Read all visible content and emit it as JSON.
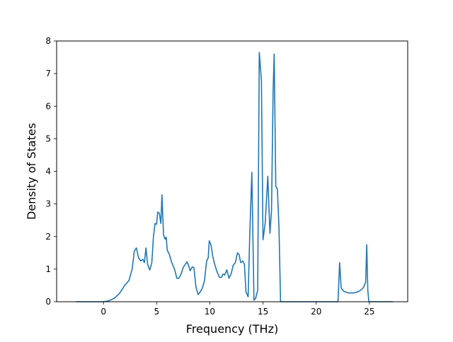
{
  "chart_data": {
    "type": "line",
    "title": "",
    "xlabel": "Frequency (THz)",
    "ylabel": "Density of States",
    "xlim": [
      -4.4,
      28.6
    ],
    "ylim": [
      0,
      8
    ],
    "xticks": [
      0,
      5,
      10,
      15,
      20,
      25
    ],
    "yticks": [
      0,
      1,
      2,
      3,
      4,
      5,
      6,
      7,
      8
    ],
    "grid": false,
    "line_color": "#1f77b4",
    "series": [
      {
        "points": [
          [
            -2.6,
            0.0
          ],
          [
            -1.0,
            0.0
          ],
          [
            0.0,
            0.0
          ],
          [
            0.5,
            0.03
          ],
          [
            1.0,
            0.1
          ],
          [
            1.5,
            0.25
          ],
          [
            2.0,
            0.5
          ],
          [
            2.4,
            0.65
          ],
          [
            2.7,
            1.0
          ],
          [
            2.9,
            1.55
          ],
          [
            3.1,
            1.65
          ],
          [
            3.3,
            1.35
          ],
          [
            3.5,
            1.25
          ],
          [
            3.7,
            1.3
          ],
          [
            3.85,
            1.2
          ],
          [
            4.0,
            1.65
          ],
          [
            4.15,
            1.15
          ],
          [
            4.35,
            0.97
          ],
          [
            4.55,
            1.2
          ],
          [
            4.7,
            2.0
          ],
          [
            4.85,
            2.4
          ],
          [
            5.0,
            2.38
          ],
          [
            5.1,
            2.75
          ],
          [
            5.25,
            2.72
          ],
          [
            5.4,
            2.4
          ],
          [
            5.5,
            3.28
          ],
          [
            5.65,
            2.05
          ],
          [
            5.8,
            1.92
          ],
          [
            5.9,
            1.98
          ],
          [
            6.0,
            1.58
          ],
          [
            6.2,
            1.45
          ],
          [
            6.4,
            1.22
          ],
          [
            6.7,
            0.98
          ],
          [
            6.9,
            0.72
          ],
          [
            7.1,
            0.72
          ],
          [
            7.3,
            0.85
          ],
          [
            7.5,
            1.05
          ],
          [
            7.7,
            1.15
          ],
          [
            7.85,
            1.22
          ],
          [
            8.0,
            1.12
          ],
          [
            8.15,
            0.95
          ],
          [
            8.35,
            1.07
          ],
          [
            8.5,
            1.05
          ],
          [
            8.7,
            0.45
          ],
          [
            8.9,
            0.22
          ],
          [
            9.1,
            0.3
          ],
          [
            9.3,
            0.42
          ],
          [
            9.5,
            0.65
          ],
          [
            9.7,
            1.25
          ],
          [
            9.85,
            1.35
          ],
          [
            9.95,
            1.87
          ],
          [
            10.1,
            1.75
          ],
          [
            10.3,
            1.35
          ],
          [
            10.5,
            1.1
          ],
          [
            10.7,
            0.9
          ],
          [
            10.9,
            0.75
          ],
          [
            11.1,
            0.75
          ],
          [
            11.25,
            0.85
          ],
          [
            11.4,
            0.82
          ],
          [
            11.6,
            0.98
          ],
          [
            11.8,
            0.72
          ],
          [
            12.0,
            0.85
          ],
          [
            12.2,
            1.12
          ],
          [
            12.4,
            1.2
          ],
          [
            12.6,
            1.5
          ],
          [
            12.75,
            1.45
          ],
          [
            12.9,
            1.2
          ],
          [
            13.1,
            1.25
          ],
          [
            13.25,
            1.15
          ],
          [
            13.4,
            0.3
          ],
          [
            13.6,
            0.15
          ],
          [
            13.75,
            2.0
          ],
          [
            13.95,
            3.97
          ],
          [
            14.15,
            0.05
          ],
          [
            14.3,
            0.1
          ],
          [
            14.5,
            0.35
          ],
          [
            14.65,
            7.65
          ],
          [
            14.85,
            6.8
          ],
          [
            15.0,
            1.9
          ],
          [
            15.2,
            2.4
          ],
          [
            15.45,
            3.85
          ],
          [
            15.65,
            2.1
          ],
          [
            15.8,
            2.8
          ],
          [
            15.95,
            6.5
          ],
          [
            16.05,
            7.6
          ],
          [
            16.2,
            3.55
          ],
          [
            16.35,
            3.45
          ],
          [
            16.5,
            2.3
          ],
          [
            16.65,
            0.0
          ],
          [
            18.0,
            0.0
          ],
          [
            20.0,
            0.0
          ],
          [
            22.05,
            0.0
          ],
          [
            22.2,
            1.2
          ],
          [
            22.35,
            0.42
          ],
          [
            22.6,
            0.32
          ],
          [
            23.0,
            0.27
          ],
          [
            23.5,
            0.27
          ],
          [
            23.9,
            0.3
          ],
          [
            24.2,
            0.36
          ],
          [
            24.45,
            0.44
          ],
          [
            24.65,
            0.6
          ],
          [
            24.75,
            1.75
          ],
          [
            24.85,
            0.35
          ],
          [
            24.95,
            0.0
          ],
          [
            26.0,
            0.0
          ],
          [
            27.2,
            0.0
          ]
        ]
      }
    ]
  }
}
